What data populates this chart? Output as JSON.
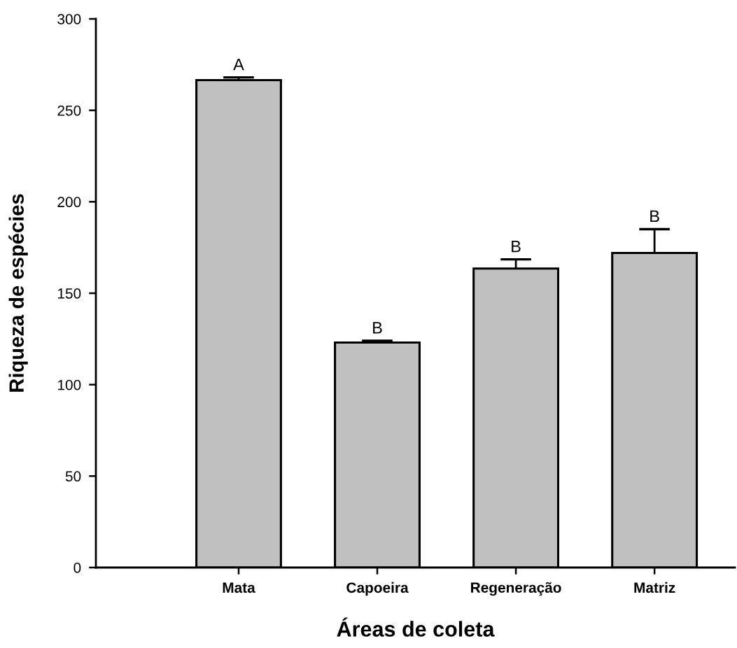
{
  "chart_data": {
    "type": "bar",
    "xlabel": "Áreas de coleta",
    "ylabel": "Riqueza de espécies",
    "categories": [
      "Mata",
      "Capoeira",
      "Regeneração",
      "Matriz"
    ],
    "values": [
      266.5,
      123,
      163.5,
      172
    ],
    "errors": [
      [
        266.5,
        268
      ],
      [
        123,
        124
      ],
      [
        163.5,
        168.5
      ],
      [
        172,
        185
      ]
    ],
    "color": "#c0c0c0",
    "ylim": [
      0,
      300
    ],
    "yticks": [
      0,
      50,
      100,
      150,
      200,
      250,
      300
    ],
    "grid": false,
    "legend": false,
    "annotations": [
      {
        "text": "A",
        "x": "Mata",
        "y": 268
      },
      {
        "text": "B",
        "x": "Capoeira",
        "y": 124
      },
      {
        "text": "B",
        "x": "Regeneração",
        "y": 168.5
      },
      {
        "text": "B",
        "x": "Matriz",
        "y": 185
      }
    ]
  }
}
